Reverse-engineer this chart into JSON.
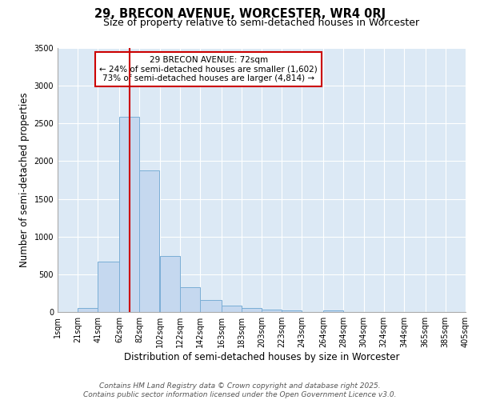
{
  "title": "29, BRECON AVENUE, WORCESTER, WR4 0RJ",
  "subtitle": "Size of property relative to semi-detached houses in Worcester",
  "xlabel": "Distribution of semi-detached houses by size in Worcester",
  "ylabel": "Number of semi-detached properties",
  "bin_labels": [
    "1sqm",
    "21sqm",
    "41sqm",
    "62sqm",
    "82sqm",
    "102sqm",
    "122sqm",
    "142sqm",
    "163sqm",
    "183sqm",
    "203sqm",
    "223sqm",
    "243sqm",
    "264sqm",
    "284sqm",
    "304sqm",
    "324sqm",
    "344sqm",
    "365sqm",
    "385sqm",
    "405sqm"
  ],
  "bin_edges": [
    1,
    21,
    41,
    62,
    82,
    102,
    122,
    142,
    163,
    183,
    203,
    223,
    243,
    264,
    284,
    304,
    324,
    344,
    365,
    385,
    405
  ],
  "bar_heights": [
    0,
    50,
    670,
    2590,
    1880,
    740,
    330,
    155,
    80,
    50,
    30,
    20,
    0,
    25,
    0,
    0,
    0,
    0,
    0,
    0
  ],
  "bar_color": "#c5d8ef",
  "bar_edge_color": "#7aaed6",
  "property_size": 72,
  "vline_color": "#cc0000",
  "annotation_text": "29 BRECON AVENUE: 72sqm\n← 24% of semi-detached houses are smaller (1,602)\n73% of semi-detached houses are larger (4,814) →",
  "annotation_box_color": "#cc0000",
  "ylim": [
    0,
    3500
  ],
  "yticks": [
    0,
    500,
    1000,
    1500,
    2000,
    2500,
    3000,
    3500
  ],
  "footer_line1": "Contains HM Land Registry data © Crown copyright and database right 2025.",
  "footer_line2": "Contains public sector information licensed under the Open Government Licence v3.0.",
  "bg_color": "#ffffff",
  "plot_bg_color": "#dce9f5",
  "title_fontsize": 10.5,
  "subtitle_fontsize": 9,
  "axis_label_fontsize": 8.5,
  "tick_fontsize": 7,
  "annotation_fontsize": 7.5,
  "footer_fontsize": 6.5
}
